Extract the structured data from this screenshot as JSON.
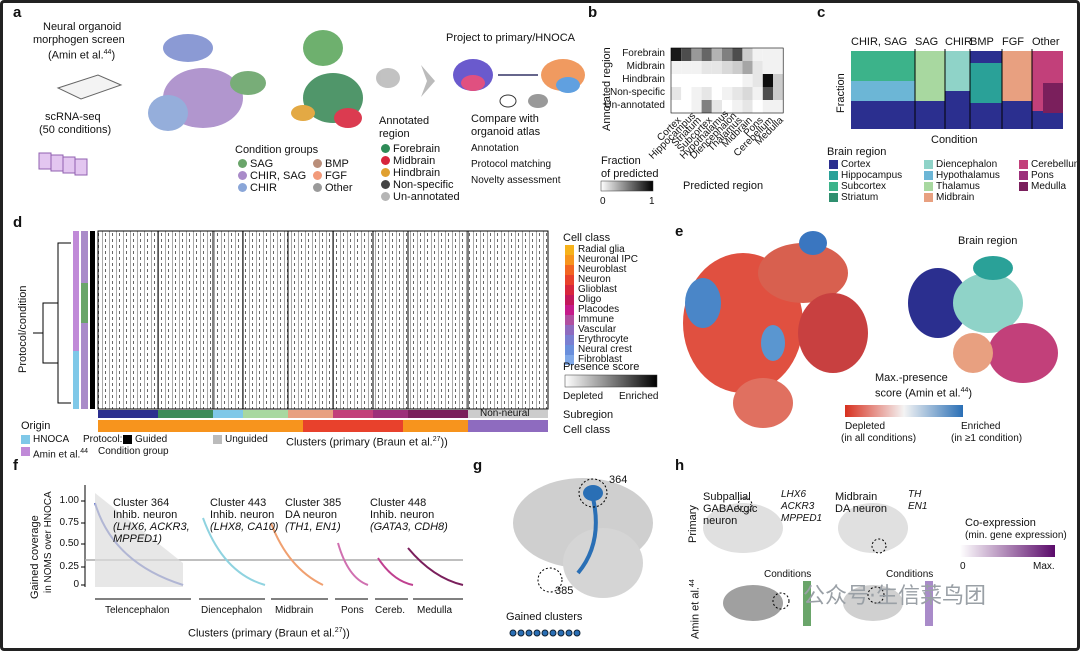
{
  "a": {
    "label": "a",
    "screen": [
      "Neural organoid",
      "morphogen screen",
      "(Amin et al."
    ],
    "ref": "44",
    "ref_end": ")",
    "scrna": [
      "scRNA-seq",
      "(50 conditions)"
    ],
    "condition_groups": {
      "title": "Condition groups",
      "items": [
        {
          "name": "SAG",
          "color": "#6aa56a"
        },
        {
          "name": "CHIR, SAG",
          "color": "#a98bc9"
        },
        {
          "name": "CHIR",
          "color": "#8aa6d8"
        },
        {
          "name": "BMP",
          "color": "#b98e7a"
        },
        {
          "name": "FGF",
          "color": "#f29a7a"
        },
        {
          "name": "Other",
          "color": "#9a9a9a"
        }
      ]
    },
    "annotated_region": {
      "title": [
        "Annotated",
        "region"
      ],
      "items": [
        {
          "name": "Forebrain",
          "color": "#2e8b57"
        },
        {
          "name": "Midbrain",
          "color": "#d7263d"
        },
        {
          "name": "Hindbrain",
          "color": "#e0a030"
        },
        {
          "name": "Non-specific",
          "color": "#444444"
        },
        {
          "name": "Un-annotated",
          "color": "#b5b5b5"
        }
      ]
    },
    "project": "Project to primary/HNOCA",
    "compare": [
      "Compare with",
      "organoid atlas"
    ],
    "bullets": [
      "Annotation",
      "Protocol matching",
      "Novelty assessment"
    ]
  },
  "b": {
    "label": "b",
    "ylabel": "Annotated region",
    "xlabel": "Predicted region",
    "rows": [
      "Forebrain",
      "Midbrain",
      "Hindbrain",
      "Non-specific",
      "Un-annotated"
    ],
    "cols": [
      "Cortex",
      "Hippocampus",
      "Striatum",
      "Subcortex",
      "Hypothalamus",
      "Diencephalon",
      "Thalamus",
      "Midbrain",
      "Pons",
      "Cerebellum",
      "Medulla"
    ],
    "values": [
      [
        0.9,
        0.7,
        0.4,
        0.6,
        0.3,
        0.5,
        0.7,
        0.2,
        0.05,
        0.05,
        0.05
      ],
      [
        0.05,
        0.05,
        0.05,
        0.1,
        0.1,
        0.15,
        0.2,
        0.35,
        0.1,
        0.05,
        0.05
      ],
      [
        0,
        0,
        0,
        0,
        0,
        0,
        0,
        0.05,
        0.1,
        0.95,
        0.2
      ],
      [
        0.1,
        0,
        0.05,
        0.1,
        0,
        0.05,
        0.1,
        0.15,
        0.05,
        0.7,
        0.2
      ],
      [
        0,
        0,
        0.05,
        0.5,
        0.1,
        0,
        0.05,
        0.1,
        0,
        0.05,
        0.05
      ]
    ],
    "colorbar_title": [
      "Fraction",
      "of predicted"
    ],
    "colorbar_ticks": [
      "0",
      "1"
    ]
  },
  "c": {
    "label": "c",
    "groups": [
      "CHIR, SAG",
      "SAG",
      "CHIR",
      "BMP",
      "FGF",
      "Other"
    ],
    "ylabel": "Fraction",
    "xlabel": "Condition",
    "legend_title": "Brain region",
    "legend": [
      {
        "name": "Cortex",
        "color": "#2b2f8f"
      },
      {
        "name": "Hippocampus",
        "color": "#2aa198"
      },
      {
        "name": "Subcortex",
        "color": "#3cb38a"
      },
      {
        "name": "Striatum",
        "color": "#2f8f6f"
      },
      {
        "name": "Diencephalon",
        "color": "#8fd3c8"
      },
      {
        "name": "Hypothalamus",
        "color": "#6cb6d6"
      },
      {
        "name": "Thalamus",
        "color": "#a8d8a0"
      },
      {
        "name": "Midbrain",
        "color": "#e8a080"
      },
      {
        "name": "Cerebellum",
        "color": "#c2407a"
      },
      {
        "name": "Pons",
        "color": "#9c2f7a"
      },
      {
        "name": "Medulla",
        "color": "#7a1f5c"
      }
    ]
  },
  "d": {
    "label": "d",
    "ylabel": "Protocol/condition",
    "cell_class_title": "Cell class",
    "cell_classes": [
      {
        "name": "Radial glia",
        "color": "#f6b21b"
      },
      {
        "name": "Neuronal IPC",
        "color": "#f7941d"
      },
      {
        "name": "Neuroblast",
        "color": "#f26522"
      },
      {
        "name": "Neuron",
        "color": "#e8412c"
      },
      {
        "name": "Glioblast",
        "color": "#d7263d"
      },
      {
        "name": "Oligo",
        "color": "#c2185b"
      },
      {
        "name": "Placodes",
        "color": "#c51b8a"
      },
      {
        "name": "Immune",
        "color": "#b04fa0"
      },
      {
        "name": "Vascular",
        "color": "#8e6bbf"
      },
      {
        "name": "Erythrocyte",
        "color": "#7a7fd1"
      },
      {
        "name": "Neural crest",
        "color": "#6a8fdc"
      },
      {
        "name": "Fibroblast",
        "color": "#7fa8e8"
      }
    ],
    "presence_title": "Presence score",
    "presence_ends": [
      "Depleted",
      "Enriched"
    ],
    "subregion": "Subregion",
    "cell_class": "Cell class",
    "non_neural": "Non-neural",
    "origin": "Origin",
    "origin_items": [
      {
        "name": "HNOCA",
        "color": "#7fc8e8"
      },
      {
        "name": "Amin et al.",
        "color": "#c08ad8"
      }
    ],
    "origin_ref": "44",
    "condition_group": "Condition group",
    "protocol": "Protocol:",
    "guided": "Guided",
    "unguided": "Unguided",
    "xlabel": "Clusters (primary (Braun et al.",
    "xref": "27",
    "xend": "))"
  },
  "e": {
    "label": "e",
    "brain_region": "Brain region",
    "score_title": [
      "Max.-presence",
      "score (Amin et al."
    ],
    "score_ref": "44",
    "score_end": ")",
    "depleted": [
      "Depleted",
      "(in all conditions)"
    ],
    "enriched": [
      "Enriched",
      "(in ≥1 condition)"
    ]
  },
  "f": {
    "label": "f",
    "ylabel": [
      "Gained coverage",
      "in NOMS over HNOCA"
    ],
    "yticks": [
      "0",
      "0.25",
      "0.50",
      "0.75",
      "1.00"
    ],
    "annotations": [
      [
        "Cluster 364",
        "Inhib. neuron",
        "(LHX6, ACKR3,",
        "MPPED1)"
      ],
      [
        "Cluster 443",
        "Inhib. neuron",
        "(LHX8, CA10)"
      ],
      [
        "Cluster 385",
        "DA neuron",
        "(TH1, EN1)"
      ],
      [
        "Cluster 448",
        "Inhib. neuron",
        "(GATA3, CDH8)"
      ]
    ],
    "regions": [
      "Telencephalon",
      "Diencephalon",
      "Midbrain",
      "Pons",
      "Cereb.",
      "Medulla"
    ],
    "xlabel": "Clusters (primary (Braun et al.",
    "xref": "27",
    "xend": "))"
  },
  "g": {
    "label": "g",
    "c1": "364",
    "c2": "385",
    "legend": "Gained clusters"
  },
  "h": {
    "label": "h",
    "cell1": [
      "Subpallial",
      "GABAergic",
      "neuron"
    ],
    "genes1": [
      "LHX6",
      "ACKR3",
      "MPPED1"
    ],
    "cell2": [
      "Midbrain",
      "DA neuron"
    ],
    "genes2": [
      "TH",
      "EN1"
    ],
    "row1": "Primary",
    "row2": "Amin et al.",
    "row2_ref": "44",
    "conditions": [
      "Conditions",
      "Conditions"
    ],
    "coexp": [
      "Co-expression",
      "(min. gene expression)"
    ],
    "coexp_ticks": [
      "0",
      "Max."
    ]
  },
  "watermark": "公众号·生信菜鸟团"
}
